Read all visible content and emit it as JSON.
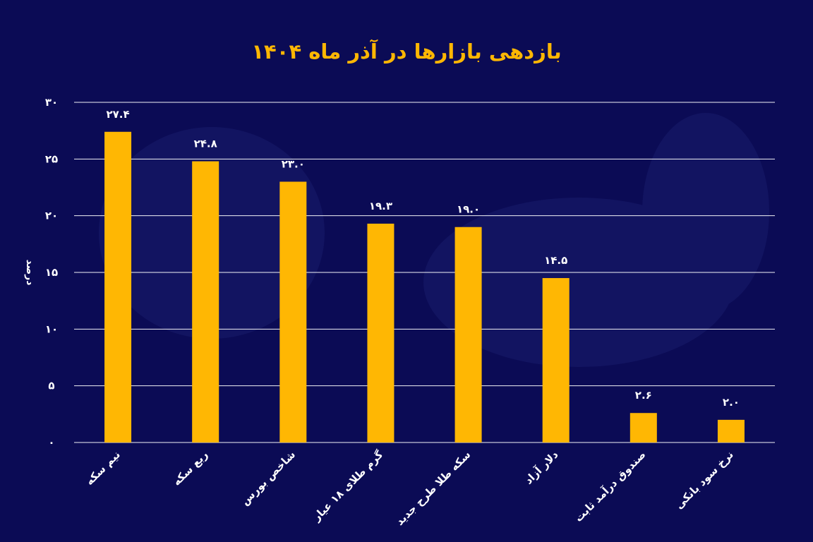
{
  "chart_data": {
    "type": "bar",
    "title": "بازدهی بازارها در آذر ماه ۱۴۰۴",
    "ylabel": "درصد",
    "xlabel": "",
    "ylim": [
      0,
      30
    ],
    "yticks": [
      0,
      5,
      10,
      15,
      20,
      25,
      30
    ],
    "ytick_labels": [
      "۰",
      "۵",
      "۱۰",
      "۱۵",
      "۲۰",
      "۲۵",
      "۳۰"
    ],
    "grid": true,
    "categories": [
      "نیم سکه",
      "ربع سکه",
      "شاخص بورس",
      "گرم طلای ۱۸ عیار",
      "سکه طلا طرح جدید",
      "دلار آزاد",
      "صندوق درآمد ثابت",
      "نرخ سود بانکی"
    ],
    "values": [
      27.4,
      24.8,
      23.0,
      19.3,
      19.0,
      14.5,
      2.6,
      2.0
    ],
    "value_labels": [
      "۲۷.۴",
      "۲۴.۸",
      "۲۳.۰",
      "۱۹.۳",
      "۱۹.۰",
      "۱۴.۵",
      "۲.۶",
      "۲.۰"
    ]
  },
  "colors": {
    "background": "#0b0b55",
    "bar": "#ffb703",
    "title": "#ffb703",
    "text": "#ffffff",
    "grid": "#ffffff"
  }
}
